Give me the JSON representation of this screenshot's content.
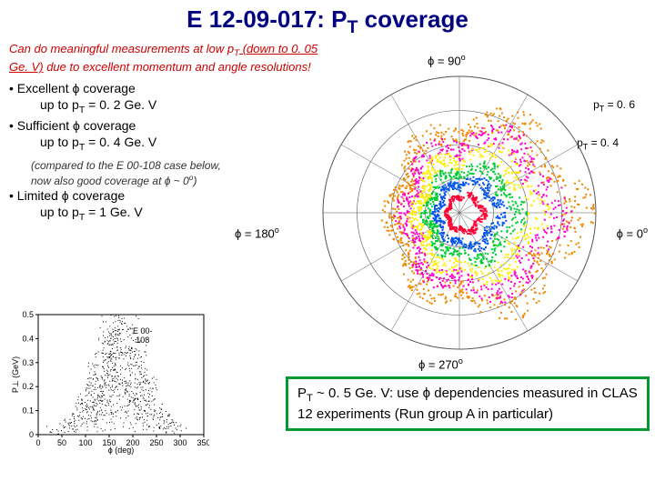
{
  "title_pre": "E 12-09-017: P",
  "title_sub": "T",
  "title_post": " coverage",
  "subtitle_pre": "Can do meaningful measurements at low p",
  "subtitle_sub": "T",
  "subtitle_ul": " (down to 0. 05 Ge. V)",
  "subtitle_post": " due to excellent momentum and angle resolutions!",
  "b1": "• Excellent ϕ coverage",
  "b1a": "up to p",
  "b1a_sub": "T",
  "b1a_post": " = 0. 2 Ge. V",
  "b2": "• Sufficient ϕ coverage",
  "b2a": "up to p",
  "b2a_sub": "T",
  "b2a_post": " = 0. 4 Ge. V",
  "note": "(compared to the E 00-108 case below, now also good coverage at ϕ ~ 0",
  "note_sup": "o",
  "note_post": ")",
  "b3": "• Limited ϕ coverage",
  "b3a": "up to p",
  "b3a_sub": "T",
  "b3a_post": " = 1 Ge. V",
  "phi90": "ϕ = 90",
  "phi180": "ϕ = 180",
  "phi0": "ϕ = 0",
  "phi270": "ϕ = 270",
  "deg": "o",
  "pt06_pre": "p",
  "pt06_post": " = 0. 6",
  "pt04_pre": "p",
  "pt04_post": " = 0. 4",
  "greenbox_pre": "P",
  "greenbox_sub": "T",
  "greenbox_post": " ~ 0. 5 Ge. V: use ϕ dependencies measured in CLAS 12 experiments (Run group A in particular)",
  "scatter_label1": "E 00-",
  "scatter_label2": "108",
  "green_border": "#009933",
  "polar": {
    "colors": {
      "grid": "#555555",
      "bg": "#ffffff",
      "inner": "#ff0033",
      "r2": "#0055ee",
      "r3": "#00cc33",
      "r4": "#ffee00",
      "r5": "#ff00cc",
      "r6": "#ee8800"
    },
    "radii": [
      0.25,
      0.4,
      0.55,
      0.7,
      0.85
    ]
  },
  "scatter": {
    "xrange": [
      0,
      350
    ],
    "yrange": [
      0,
      0.5
    ],
    "yticks": [
      0,
      0.1,
      0.2,
      0.3,
      0.4,
      0.5
    ],
    "xticks": [
      0,
      50,
      100,
      150,
      200,
      250,
      300,
      350
    ],
    "xlabel": "ϕ (deg)",
    "ylabel": "P⊥ (GeV)",
    "point_color": "#000000",
    "n_points": 900
  }
}
